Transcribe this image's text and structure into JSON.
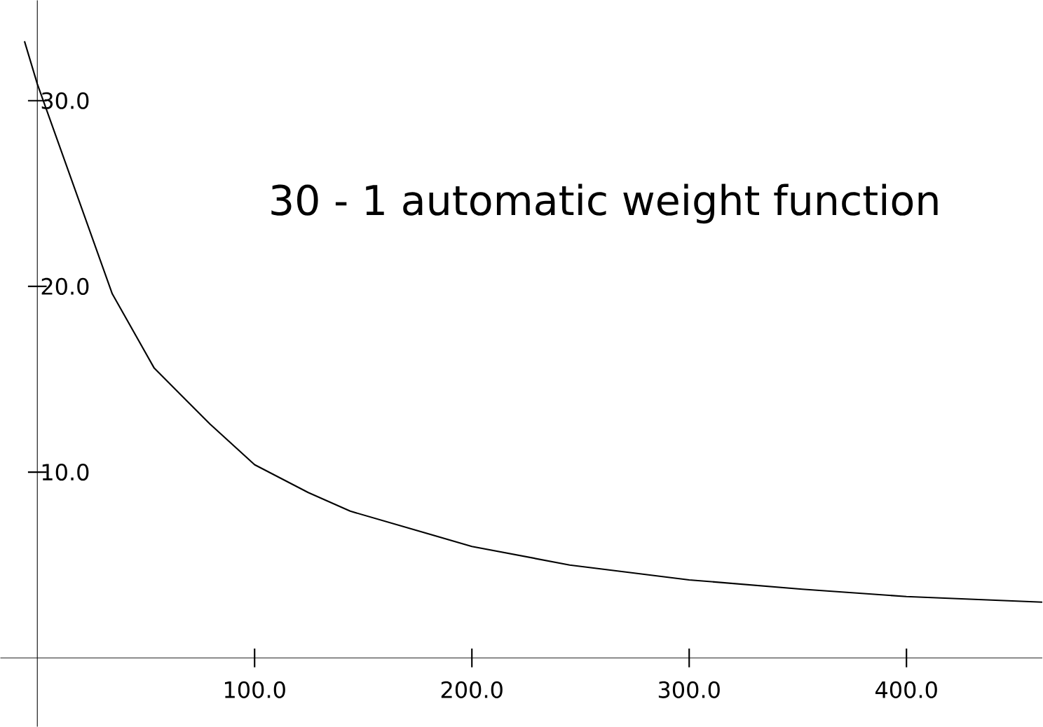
{
  "chart_data": {
    "type": "line",
    "title": "30 - 1 automatic weight function",
    "x": [
      -5.9,
      0,
      34.5,
      53.8,
      79.4,
      100,
      124.7,
      144,
      200,
      245,
      300,
      352,
      400,
      462.5
    ],
    "values": [
      33.2,
      30.9,
      19.6,
      15.6,
      12.6,
      10.4,
      8.9,
      7.9,
      6.0,
      5.0,
      4.2,
      3.7,
      3.3,
      3.0
    ],
    "color": "#000000",
    "marker": "none",
    "line_style": "solid",
    "grid": false,
    "legend": false,
    "xlim": [
      -17,
      462.5
    ],
    "ylim": [
      -3.7,
      35.4
    ],
    "xticks": [
      {
        "value": 100,
        "label": "100.0"
      },
      {
        "value": 200,
        "label": "200.0"
      },
      {
        "value": 300,
        "label": "300.0"
      },
      {
        "value": 400,
        "label": "400.0"
      }
    ],
    "yticks": [
      {
        "value": 10,
        "label": "10.0"
      },
      {
        "value": 20,
        "label": "20.0"
      },
      {
        "value": 30,
        "label": "30.0"
      }
    ]
  }
}
